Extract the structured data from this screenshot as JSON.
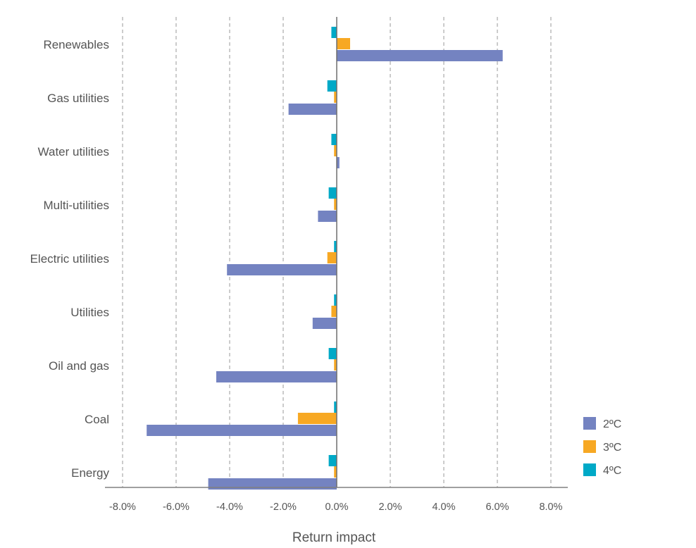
{
  "chart_data": {
    "type": "bar",
    "orientation": "horizontal",
    "categories": [
      "Renewables",
      "Gas utilities",
      "Water utilities",
      "Multi-utilities",
      "Electric utilities",
      "Utilities",
      "Oil and gas",
      "Coal",
      "Energy"
    ],
    "series": [
      {
        "name": "2ºC",
        "color": "#7483c1",
        "values": [
          6.2,
          -1.8,
          0.1,
          -0.7,
          -4.1,
          -0.9,
          -4.5,
          -7.1,
          -4.8
        ]
      },
      {
        "name": "3ºC",
        "color": "#f7a823",
        "values": [
          0.5,
          -0.1,
          -0.1,
          -0.1,
          -0.35,
          -0.2,
          -0.1,
          -1.45,
          -0.1
        ]
      },
      {
        "name": "4ºC",
        "color": "#00a9c7",
        "values": [
          -0.2,
          -0.35,
          -0.2,
          -0.3,
          -0.1,
          -0.1,
          -0.3,
          -0.1,
          -0.3
        ]
      }
    ],
    "xlim": [
      -8,
      8
    ],
    "xticks": [
      -8,
      -6,
      -4,
      -2,
      0,
      2,
      4,
      6,
      8
    ],
    "xtick_labels": [
      "-8.0%",
      "-6.0%",
      "-4.0%",
      "-2.0%",
      "0.0%",
      "2.0%",
      "4.0%",
      "6.0%",
      "8.0%"
    ],
    "xlabel": "Return impact",
    "ylabel": "",
    "title": "",
    "grid": "vertical dashed",
    "legend_position": "bottom-right"
  }
}
